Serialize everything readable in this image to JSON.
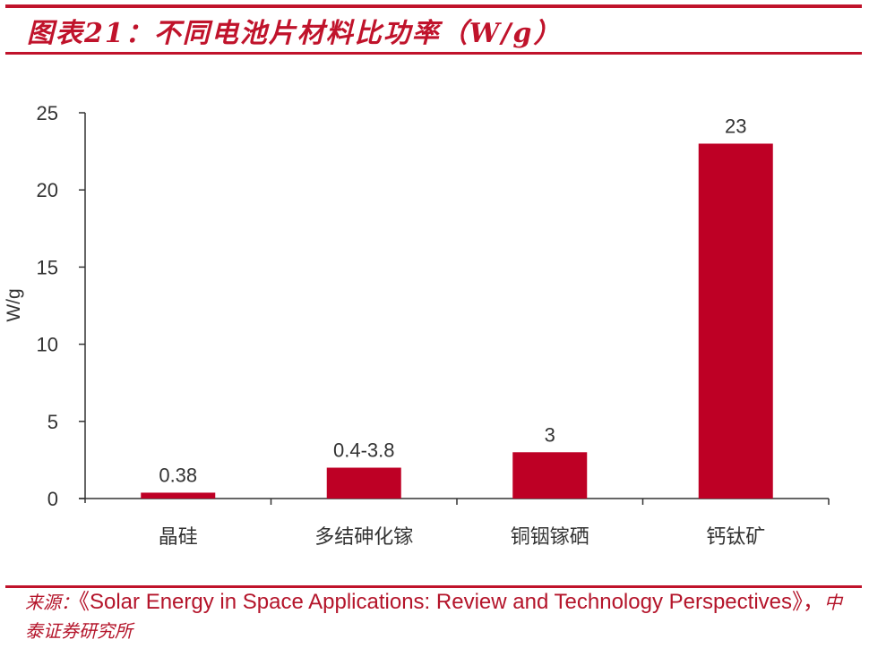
{
  "header": {
    "title": "图表21：不同电池片材料比功率（W/g）"
  },
  "colors": {
    "accent": "#c0132b",
    "bar": "#be0025",
    "axis": "#333333",
    "text": "#333333"
  },
  "chart_data": {
    "type": "bar",
    "title": "不同电池片材料比功率（W/g）",
    "xlabel": "",
    "ylabel": "W/g",
    "ylim": [
      0,
      25
    ],
    "yticks": [
      0,
      5,
      10,
      15,
      20,
      25
    ],
    "grid": false,
    "legend": "none",
    "categories": [
      "晶硅",
      "多结砷化镓",
      "铜铟镓硒",
      "钙钛矿"
    ],
    "values": [
      0.38,
      2.0,
      3,
      23
    ],
    "data_labels": [
      "0.38",
      "0.4-3.8",
      "3",
      "23"
    ]
  },
  "footer": {
    "source_label": "来源：",
    "source_text": "《Solar Energy in Space Applications: Review and Technology Perspectives》，",
    "source_org": "中泰证券研究所"
  }
}
